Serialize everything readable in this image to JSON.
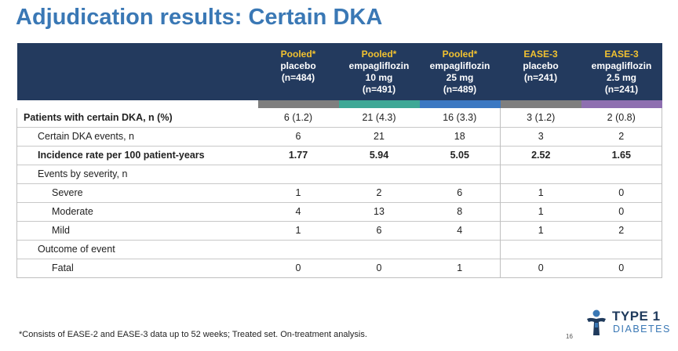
{
  "title": "Adjudication results: Certain DKA",
  "columns": [
    {
      "group": "Pooled*",
      "line1": "placebo",
      "line2": "(n=484)",
      "line3": "",
      "bar_color": "#7f7f7f"
    },
    {
      "group": "Pooled*",
      "line1": "empagliflozin",
      "line2": "10 mg",
      "line3": "(n=491)",
      "bar_color": "#3ea896"
    },
    {
      "group": "Pooled*",
      "line1": "empagliflozin",
      "line2": "25 mg",
      "line3": "(n=489)",
      "bar_color": "#3b78c2"
    },
    {
      "group": "EASE-3",
      "line1": "placebo",
      "line2": "(n=241)",
      "line3": "",
      "bar_color": "#7f7f7f"
    },
    {
      "group": "EASE-3",
      "line1": "empagliflozin",
      "line2": "2.5 mg",
      "line3": "(n=241)",
      "bar_color": "#8e6fb0"
    }
  ],
  "rows": [
    {
      "label": "Patients with certain DKA, n (%)",
      "values": [
        "6 (1.2)",
        "21 (4.3)",
        "16 (3.3)",
        "3 (1.2)",
        "2 (0.8)"
      ]
    },
    {
      "label": "Certain DKA events, n",
      "values": [
        "6",
        "21",
        "18",
        "3",
        "2"
      ]
    },
    {
      "label": "Incidence rate per 100 patient-years",
      "values": [
        "1.77",
        "5.94",
        "5.05",
        "2.52",
        "1.65"
      ]
    },
    {
      "label": "Events by severity, n",
      "values": [
        "",
        "",
        "",
        "",
        ""
      ]
    },
    {
      "label": "Severe",
      "values": [
        "1",
        "2",
        "6",
        "1",
        "0"
      ]
    },
    {
      "label": "Moderate",
      "values": [
        "4",
        "13",
        "8",
        "1",
        "0"
      ]
    },
    {
      "label": "Mild",
      "values": [
        "1",
        "6",
        "4",
        "1",
        "2"
      ]
    },
    {
      "label": "Outcome of event",
      "values": [
        "",
        "",
        "",
        "",
        ""
      ]
    },
    {
      "label": "Fatal",
      "values": [
        "0",
        "0",
        "1",
        "0",
        "0"
      ]
    }
  ],
  "footnote": "*Consists of EASE-2 and EASE-3 data up to 52 weeks; Treated set. On-treatment analysis.",
  "page_number": "16",
  "logo": {
    "line1": "TYPE 1",
    "line2": "DIABETES",
    "primary_color": "#1f3a5c",
    "accent_color": "#3a78b5"
  }
}
